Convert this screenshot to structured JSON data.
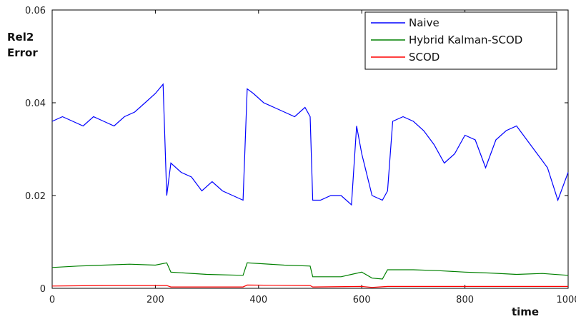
{
  "chart_data": {
    "type": "line",
    "title": "",
    "xlabel": "time",
    "ylabel_line1": "Rel2",
    "ylabel_line2": "Error",
    "xlim": [
      0,
      1000
    ],
    "ylim": [
      0,
      0.06
    ],
    "xticks": [
      0,
      200,
      400,
      600,
      800,
      1000
    ],
    "xtick_labels": [
      "0",
      "200",
      "400",
      "600",
      "800",
      "1000"
    ],
    "yticks": [
      0,
      0.02,
      0.04,
      0.06
    ],
    "ytick_labels": [
      "0",
      "0.02",
      "0.04",
      "0.06"
    ],
    "grid": false,
    "legend_position": "top-right",
    "series": [
      {
        "name": "Naive",
        "color": "#0000ff",
        "x": [
          0,
          20,
          40,
          60,
          80,
          100,
          120,
          140,
          160,
          180,
          200,
          215,
          222,
          230,
          250,
          270,
          290,
          310,
          330,
          350,
          370,
          378,
          390,
          410,
          430,
          450,
          470,
          490,
          500,
          505,
          520,
          540,
          560,
          580,
          590,
          600,
          620,
          640,
          650,
          660,
          680,
          700,
          720,
          740,
          760,
          780,
          800,
          820,
          840,
          860,
          880,
          900,
          920,
          940,
          960,
          980,
          1000
        ],
        "y": [
          0.036,
          0.037,
          0.036,
          0.035,
          0.037,
          0.036,
          0.035,
          0.037,
          0.038,
          0.04,
          0.042,
          0.044,
          0.02,
          0.027,
          0.025,
          0.024,
          0.021,
          0.023,
          0.021,
          0.02,
          0.019,
          0.043,
          0.042,
          0.04,
          0.039,
          0.038,
          0.037,
          0.039,
          0.037,
          0.019,
          0.019,
          0.02,
          0.02,
          0.018,
          0.035,
          0.029,
          0.02,
          0.019,
          0.021,
          0.036,
          0.037,
          0.036,
          0.034,
          0.031,
          0.027,
          0.029,
          0.033,
          0.032,
          0.026,
          0.032,
          0.034,
          0.035,
          0.032,
          0.029,
          0.026,
          0.019,
          0.025
        ]
      },
      {
        "name": "Hybrid Kalman-SCOD",
        "color": "#008000",
        "x": [
          0,
          50,
          100,
          150,
          200,
          222,
          230,
          300,
          370,
          378,
          450,
          500,
          505,
          560,
          580,
          600,
          620,
          640,
          650,
          700,
          750,
          800,
          850,
          900,
          950,
          1000
        ],
        "y": [
          0.0045,
          0.0048,
          0.005,
          0.0052,
          0.005,
          0.0055,
          0.0035,
          0.003,
          0.0028,
          0.0055,
          0.005,
          0.0048,
          0.0025,
          0.0025,
          0.003,
          0.0035,
          0.0022,
          0.002,
          0.004,
          0.004,
          0.0038,
          0.0035,
          0.0033,
          0.003,
          0.0032,
          0.0028
        ]
      },
      {
        "name": "SCOD",
        "color": "#ff0000",
        "x": [
          0,
          100,
          200,
          222,
          230,
          370,
          378,
          500,
          505,
          600,
          620,
          650,
          800,
          1000
        ],
        "y": [
          0.0005,
          0.0006,
          0.0006,
          0.0006,
          0.0003,
          0.0003,
          0.0007,
          0.0006,
          0.0003,
          0.0004,
          0.0002,
          0.0004,
          0.0004,
          0.0004
        ]
      }
    ]
  }
}
